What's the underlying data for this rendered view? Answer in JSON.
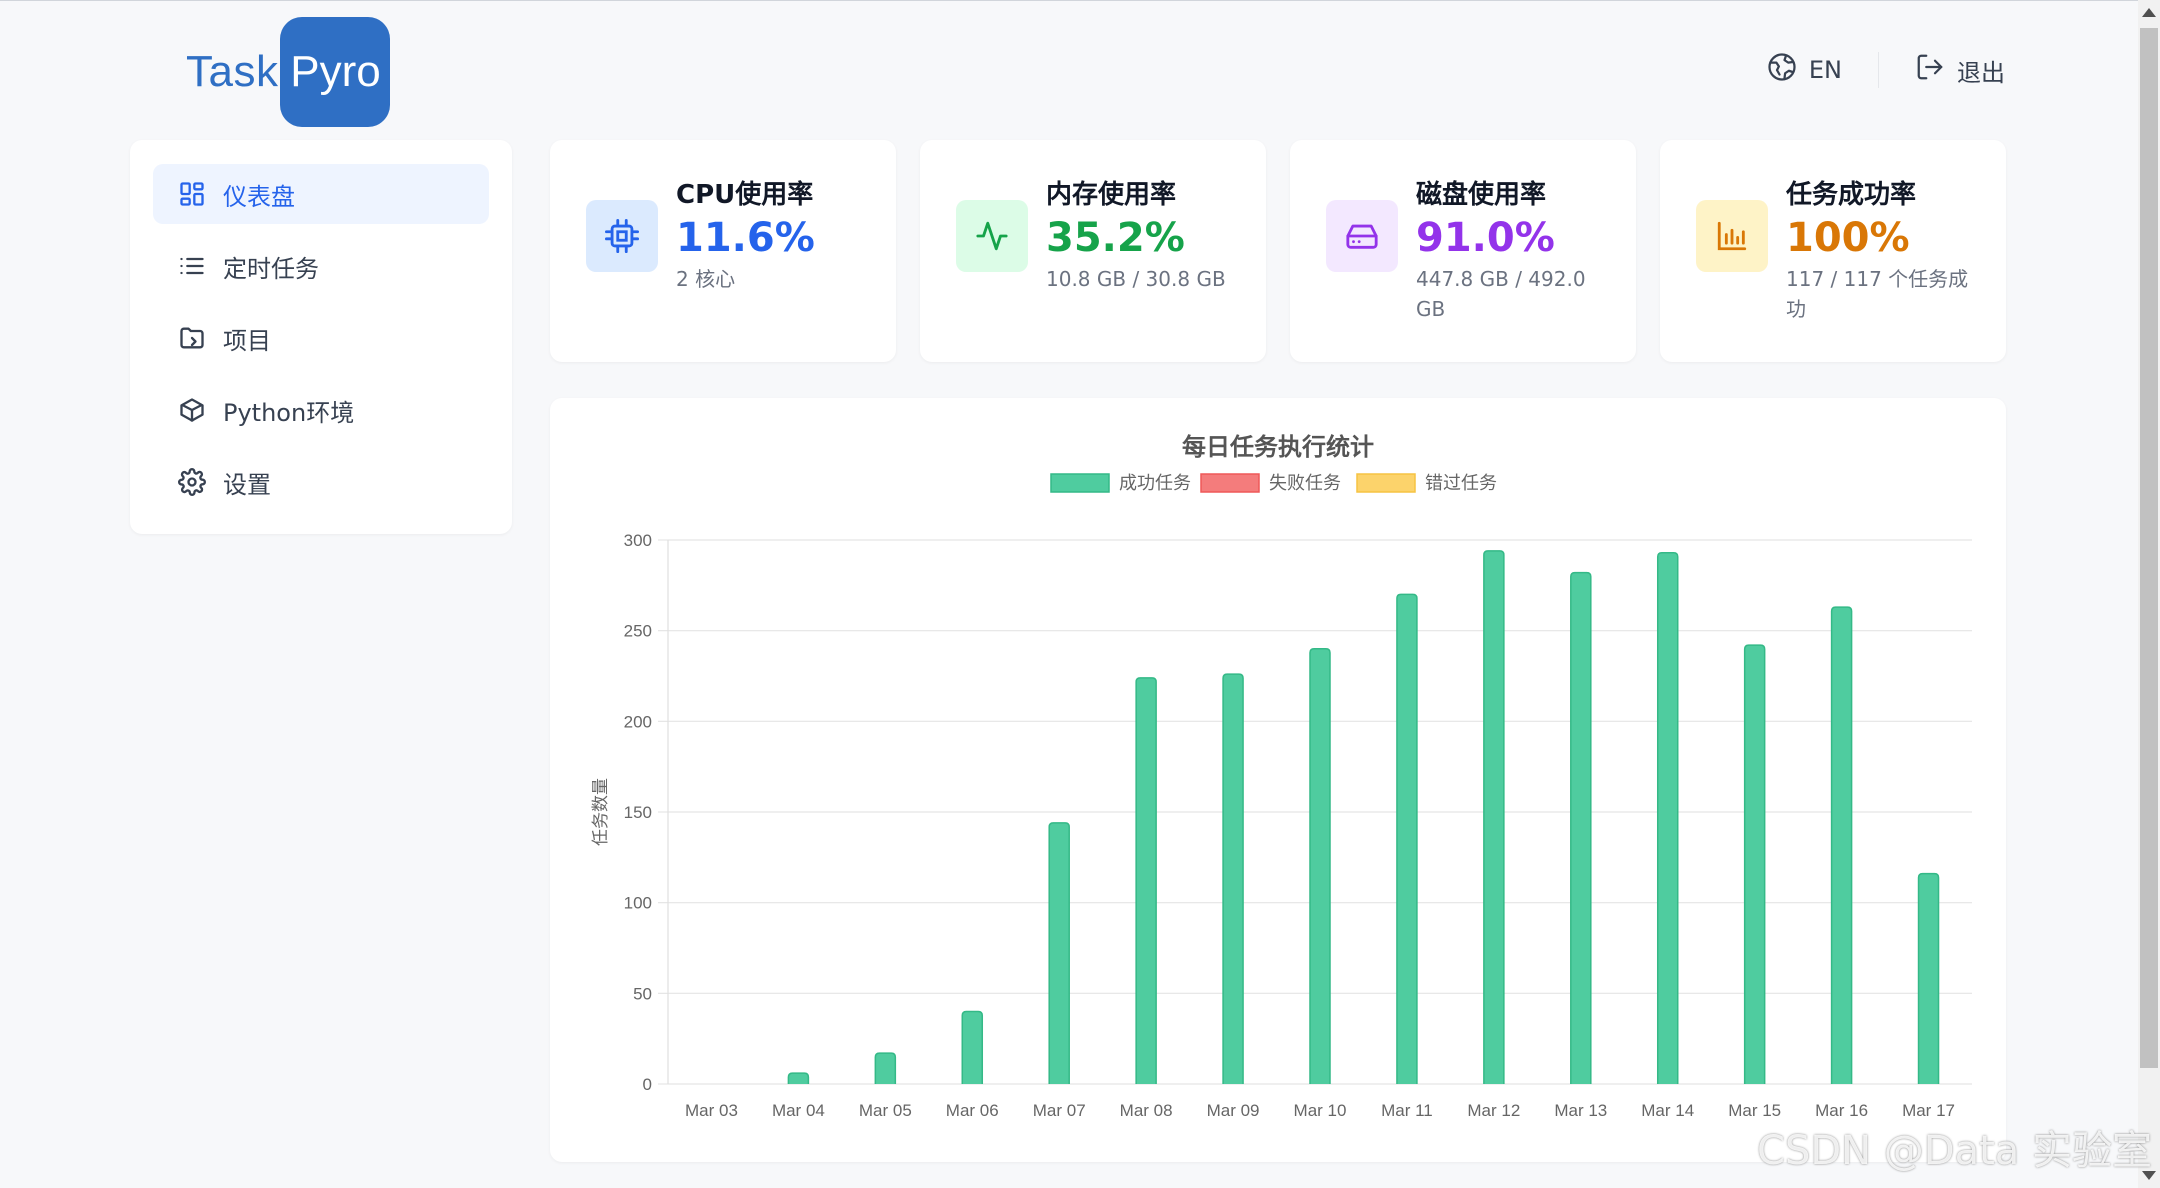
{
  "app": {
    "logo_left": "Task",
    "logo_right": "Pyro"
  },
  "header": {
    "language_label": "EN",
    "logout_label": "退出"
  },
  "sidebar": {
    "items": [
      {
        "label": "仪表盘",
        "icon": "dashboard-icon",
        "active": true
      },
      {
        "label": "定时任务",
        "icon": "list-icon"
      },
      {
        "label": "项目",
        "icon": "folder-icon"
      },
      {
        "label": "Python环境",
        "icon": "cube-icon"
      },
      {
        "label": "设置",
        "icon": "gear-icon"
      }
    ]
  },
  "stats": [
    {
      "title": "CPU使用率",
      "value": "11.6%",
      "sub": "2 核心",
      "icon": "cpu-icon",
      "color": "#2563eb",
      "bg": "#dbeafe"
    },
    {
      "title": "内存使用率",
      "value": "35.2%",
      "sub": "10.8 GB / 30.8 GB",
      "icon": "activity-icon",
      "color": "#16a34a",
      "bg": "#dcfce7"
    },
    {
      "title": "磁盘使用率",
      "value": "91.0%",
      "sub": "447.8 GB / 492.0 GB",
      "icon": "hard-drive-icon",
      "color": "#9333ea",
      "bg": "#f3e8ff"
    },
    {
      "title": "任务成功率",
      "value": "100%",
      "sub": "117 / 117 个任务成功",
      "icon": "bar-chart-icon",
      "color": "#d97706",
      "bg": "#fef3c7"
    }
  ],
  "chart_data": {
    "type": "bar",
    "title": "每日任务执行统计",
    "ylabel": "任务数量",
    "xlabel": "",
    "ylim": [
      0,
      300
    ],
    "yticks": [
      0,
      50,
      100,
      150,
      200,
      250,
      300
    ],
    "grid": true,
    "legend_position": "top",
    "categories": [
      "Mar 03",
      "Mar 04",
      "Mar 05",
      "Mar 06",
      "Mar 07",
      "Mar 08",
      "Mar 09",
      "Mar 10",
      "Mar 11",
      "Mar 12",
      "Mar 13",
      "Mar 14",
      "Mar 15",
      "Mar 16",
      "Mar 17"
    ],
    "series": [
      {
        "name": "成功任务",
        "color": "#4fcc9f",
        "border": "#34b987",
        "values": [
          0,
          6,
          17,
          40,
          144,
          224,
          226,
          240,
          270,
          294,
          282,
          293,
          242,
          263,
          116
        ]
      },
      {
        "name": "失败任务",
        "color": "#f47c7c",
        "border": "#ef5858",
        "values": [
          0,
          0,
          0,
          0,
          0,
          0,
          0,
          0,
          0,
          0,
          0,
          0,
          0,
          0,
          0
        ]
      },
      {
        "name": "错过任务",
        "color": "#fcd36b",
        "border": "#f6c343",
        "values": [
          0,
          0,
          0,
          0,
          0,
          0,
          0,
          0,
          0,
          0,
          0,
          0,
          0,
          0,
          0
        ]
      }
    ]
  },
  "watermark": "CSDN @Data 实验室"
}
